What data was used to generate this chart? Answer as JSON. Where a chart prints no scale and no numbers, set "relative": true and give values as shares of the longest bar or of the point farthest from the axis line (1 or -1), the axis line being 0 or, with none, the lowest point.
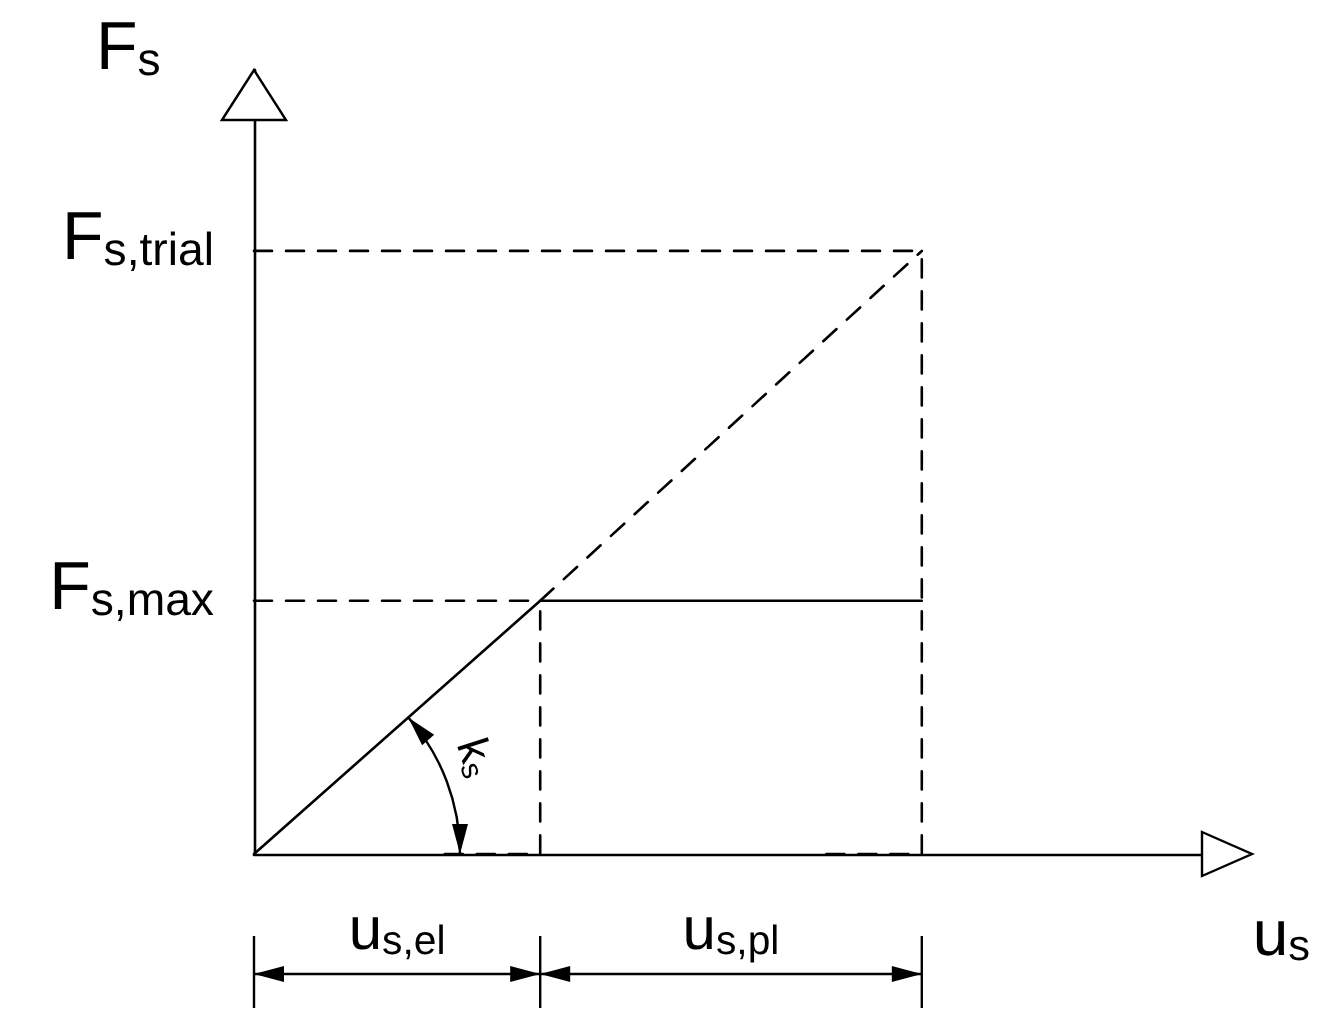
{
  "chart_data": {
    "type": "line",
    "relative": true,
    "xlabel": "u$_{s}$",
    "ylabel": "F$_{s}$",
    "marker": "none",
    "categories": [
      null,
      null,
      null,
      null,
      null,
      null,
      null,
      null,
      null,
      null,
      null
    ],
    "series": [
      {
        "color": "#000000",
        "line_style": "solid",
        "values": [
          0,
          null,
          null,
          0.42,
          null,
          null,
          null,
          0.42,
          null,
          null,
          null
        ]
      },
      {
        "color": "#000000",
        "line_style": "dashed",
        "values": [
          null,
          null,
          null,
          0.42,
          null,
          null,
          null,
          1,
          null,
          null,
          null
        ]
      },
      {
        "color": "#000000",
        "line_style": "dashed",
        "values": [
          0.42,
          null,
          null,
          0.42,
          null,
          null,
          null,
          null,
          null,
          null,
          null
        ]
      },
      {
        "color": "#000000",
        "line_style": "dashed",
        "values": [
          1,
          null,
          null,
          null,
          null,
          null,
          null,
          1,
          null,
          null,
          null
        ]
      },
      {
        "type": "step",
        "color": "#000000",
        "line_style": "dashed",
        "values": [
          null,
          null,
          0,
          0.42,
          null,
          null,
          null,
          null,
          null,
          null,
          null
        ]
      },
      {
        "type": "step",
        "color": "#000000",
        "line_style": "dashed",
        "values": [
          null,
          null,
          null,
          null,
          null,
          null,
          0,
          1,
          null,
          null,
          null
        ]
      }
    ],
    "annotations": [
      "F$_{s,max}$",
      "F$_{s,trial}$",
      "k$_{s}$",
      "u$_{s,el}$",
      "u$_{s,pl}$"
    ]
  }
}
